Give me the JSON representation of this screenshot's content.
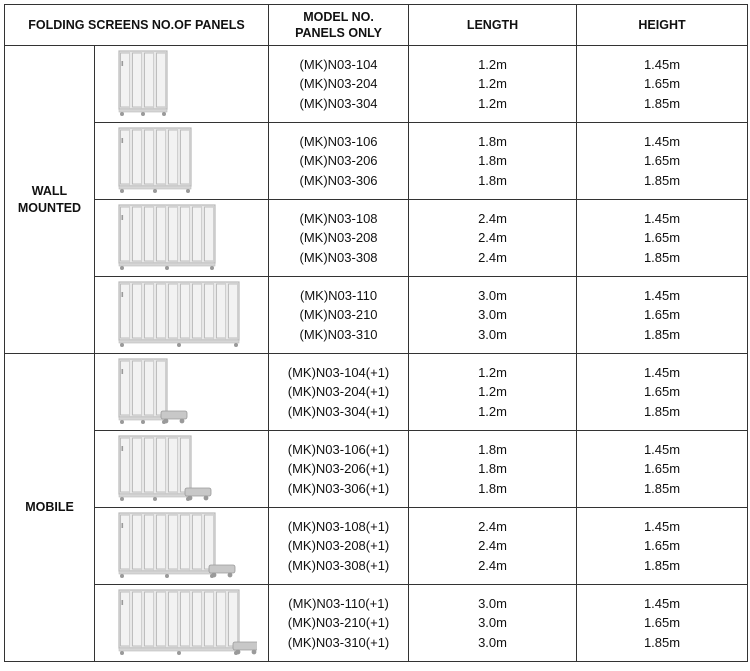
{
  "header": {
    "col1": "FOLDING SCREENS NO.OF PANELS",
    "col2_line1": "MODEL NO.",
    "col2_line2": "PANELS ONLY",
    "col3": "LENGTH",
    "col4": "HEIGHT"
  },
  "groups": [
    {
      "name_line1": "WALL",
      "name_line2": "MOUNTED",
      "rows": [
        {
          "panels": 4,
          "image_name": "folding-screen-4-panel-image",
          "models": [
            "(MK)N03-104",
            "(MK)N03-204",
            "(MK)N03-304"
          ],
          "lengths": [
            "1.2m",
            "1.2m",
            "1.2m"
          ],
          "heights": [
            "1.45m",
            "1.65m",
            "1.85m"
          ]
        },
        {
          "panels": 6,
          "image_name": "folding-screen-6-panel-image",
          "models": [
            "(MK)N03-106",
            "(MK)N03-206",
            "(MK)N03-306"
          ],
          "lengths": [
            "1.8m",
            "1.8m",
            "1.8m"
          ],
          "heights": [
            "1.45m",
            "1.65m",
            "1.85m"
          ]
        },
        {
          "panels": 8,
          "image_name": "folding-screen-8-panel-image",
          "models": [
            "(MK)N03-108",
            "(MK)N03-208",
            "(MK)N03-308"
          ],
          "lengths": [
            "2.4m",
            "2.4m",
            "2.4m"
          ],
          "heights": [
            "1.45m",
            "1.65m",
            "1.85m"
          ]
        },
        {
          "panels": 10,
          "image_name": "folding-screen-10-panel-image",
          "models": [
            "(MK)N03-110",
            "(MK)N03-210",
            "(MK)N03-310"
          ],
          "lengths": [
            "3.0m",
            "3.0m",
            "3.0m"
          ],
          "heights": [
            "1.45m",
            "1.65m",
            "1.85m"
          ]
        }
      ]
    },
    {
      "name_line1": "MOBILE",
      "name_line2": "",
      "rows": [
        {
          "panels": 4,
          "image_name": "mobile-folding-screen-4-panel-image",
          "models": [
            "(MK)N03-104(+1)",
            "(MK)N03-204(+1)",
            "(MK)N03-304(+1)"
          ],
          "lengths": [
            "1.2m",
            "1.2m",
            "1.2m"
          ],
          "heights": [
            "1.45m",
            "1.65m",
            "1.85m"
          ]
        },
        {
          "panels": 6,
          "image_name": "mobile-folding-screen-6-panel-image",
          "models": [
            "(MK)N03-106(+1)",
            "(MK)N03-206(+1)",
            "(MK)N03-306(+1)"
          ],
          "lengths": [
            "1.8m",
            "1.8m",
            "1.8m"
          ],
          "heights": [
            "1.45m",
            "1.65m",
            "1.85m"
          ]
        },
        {
          "panels": 8,
          "image_name": "mobile-folding-screen-8-panel-image",
          "models": [
            "(MK)N03-108(+1)",
            "(MK)N03-208(+1)",
            "(MK)N03-308(+1)"
          ],
          "lengths": [
            "2.4m",
            "2.4m",
            "2.4m"
          ],
          "heights": [
            "1.45m",
            "1.65m",
            "1.85m"
          ]
        },
        {
          "panels": 10,
          "image_name": "mobile-folding-screen-10-panel-image",
          "models": [
            "(MK)N03-110(+1)",
            "(MK)N03-210(+1)",
            "(MK)N03-310(+1)"
          ],
          "lengths": [
            "3.0m",
            "3.0m",
            "3.0m"
          ],
          "heights": [
            "1.45m",
            "1.65m",
            "1.85m"
          ]
        }
      ]
    }
  ],
  "colors": {
    "border": "#333333",
    "frame": "#b9b9b9",
    "panel": "#e8e8e8",
    "base": "#9a9a9a"
  }
}
